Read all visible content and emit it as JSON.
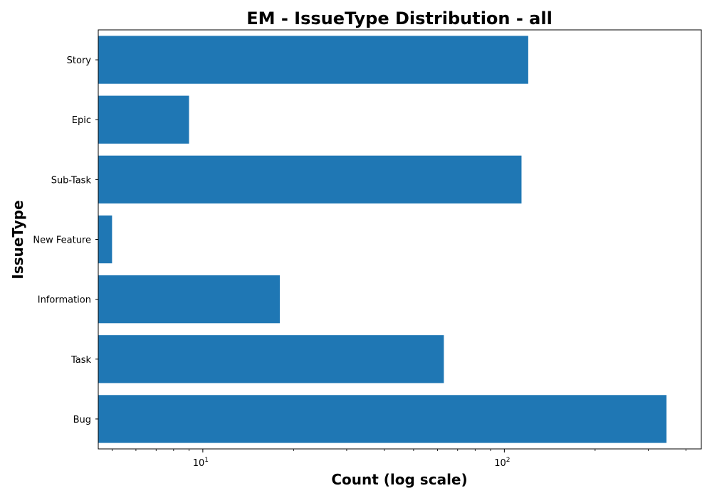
{
  "chart_data": {
    "type": "bar",
    "orientation": "horizontal",
    "title": "EM - IssueType Distribution - all",
    "xlabel": "Count (log scale)",
    "ylabel": "IssueType",
    "xscale": "log",
    "xlim": [
      4.5,
      450
    ],
    "categories": [
      "Story",
      "Epic",
      "Sub-Task",
      "New Feature",
      "Information",
      "Task",
      "Bug"
    ],
    "values": [
      120,
      9,
      114,
      5,
      18,
      63,
      345
    ],
    "x_major_ticks": [
      {
        "base": "10",
        "exp": "1",
        "value": 10
      },
      {
        "base": "10",
        "exp": "2",
        "value": 100
      }
    ],
    "grid": false,
    "legend": "none",
    "bar_color": "#1f77b4"
  }
}
